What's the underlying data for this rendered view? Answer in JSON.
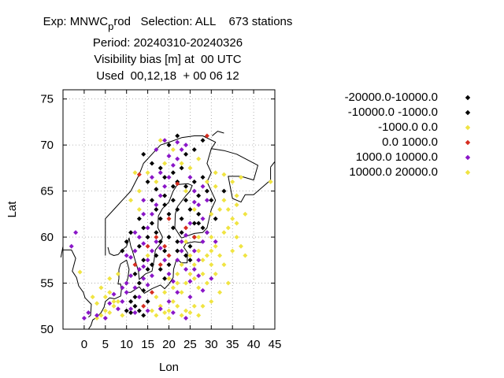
{
  "header": {
    "exp_prefix": "Exp: MNWC",
    "exp_sub": "p",
    "exp_suffix": "rod   Selection: ALL    673 stations",
    "period": "Period: 20240310-20240326",
    "parameter": "Visibility bias [m] at  00 UTC",
    "used": "Used  00,12,18  + 00 06 12"
  },
  "chart_data": {
    "type": "scatter",
    "xlabel": "Lon",
    "ylabel": "Lat",
    "xlim": [
      -5,
      45
    ],
    "ylim": [
      50,
      76
    ],
    "xticks": [
      0,
      5,
      10,
      15,
      20,
      25,
      30,
      35,
      40,
      45
    ],
    "yticks": [
      50,
      55,
      60,
      65,
      70,
      75
    ],
    "grid": true,
    "legend_position": "right",
    "series": [
      {
        "name": "-20000.0-10000.0",
        "color": "#000000",
        "points": []
      },
      {
        "name": "-10000.0 -1000.0",
        "color": "#000000",
        "points": [
          [
            14,
            69
          ],
          [
            16,
            68
          ],
          [
            18,
            67.5
          ],
          [
            19,
            66.5
          ],
          [
            21,
            67
          ],
          [
            22,
            66
          ],
          [
            24,
            65.5
          ],
          [
            26,
            66
          ],
          [
            27,
            64.5
          ],
          [
            29,
            65
          ],
          [
            16,
            64
          ],
          [
            17,
            63
          ],
          [
            18,
            62
          ],
          [
            19,
            63.5
          ],
          [
            20,
            62.5
          ],
          [
            21,
            64
          ],
          [
            22,
            63
          ],
          [
            23,
            62
          ],
          [
            24,
            64
          ],
          [
            25,
            63
          ],
          [
            26,
            61.5
          ],
          [
            27,
            62.5
          ],
          [
            28,
            61
          ],
          [
            13,
            62
          ],
          [
            14,
            61
          ],
          [
            15,
            60
          ],
          [
            16,
            61.5
          ],
          [
            17,
            60.5
          ],
          [
            18,
            59.5
          ],
          [
            19,
            58.5
          ],
          [
            20,
            60
          ],
          [
            21,
            61
          ],
          [
            22,
            59.5
          ],
          [
            23,
            60.5
          ],
          [
            24,
            58
          ],
          [
            25,
            59
          ],
          [
            26,
            60
          ],
          [
            27,
            61.5
          ],
          [
            29,
            60.5
          ],
          [
            13,
            59
          ],
          [
            14,
            57.5
          ],
          [
            15,
            56.5
          ],
          [
            12,
            56
          ],
          [
            11,
            53
          ],
          [
            12,
            52.5
          ],
          [
            13,
            52
          ],
          [
            14,
            51.5
          ],
          [
            10,
            52
          ],
          [
            11,
            51.8
          ],
          [
            12,
            53.5
          ],
          [
            13,
            55
          ],
          [
            14,
            54.2
          ],
          [
            15,
            53
          ],
          [
            16,
            57
          ],
          [
            17,
            58
          ],
          [
            18,
            56.5
          ],
          [
            19,
            55.5
          ],
          [
            20,
            57
          ],
          [
            22,
            58.5
          ],
          [
            25,
            57.5
          ],
          [
            15,
            66
          ],
          [
            17,
            65.2
          ],
          [
            19,
            64.5
          ],
          [
            21,
            65.5
          ],
          [
            23,
            67.5
          ],
          [
            28,
            66.5
          ],
          [
            30,
            64
          ],
          [
            31,
            62
          ],
          [
            33,
            65
          ],
          [
            28,
            70.5
          ],
          [
            26,
            69.5
          ],
          [
            24,
            69
          ],
          [
            20,
            70
          ],
          [
            22,
            71
          ],
          [
            10,
            59.5
          ],
          [
            11,
            60.5
          ],
          [
            9,
            58.5
          ]
        ]
      },
      {
        "name": "-1000.0 0.0",
        "color": "#f0e442",
        "points": [
          [
            4,
            51.5
          ],
          [
            5,
            52
          ],
          [
            6,
            51.8
          ],
          [
            7,
            52.5
          ],
          [
            8,
            53
          ],
          [
            5,
            53.5
          ],
          [
            6,
            54
          ],
          [
            7,
            53
          ],
          [
            3,
            51.2
          ],
          [
            9,
            51.5
          ],
          [
            16,
            52
          ],
          [
            17,
            51.5
          ],
          [
            18,
            52.5
          ],
          [
            19,
            51.8
          ],
          [
            20,
            52
          ],
          [
            21,
            53
          ],
          [
            22,
            52.5
          ],
          [
            23,
            51.5
          ],
          [
            24,
            52
          ],
          [
            25,
            51.8
          ],
          [
            26,
            52.5
          ],
          [
            27,
            51.5
          ],
          [
            17,
            53.5
          ],
          [
            19,
            54
          ],
          [
            21,
            54.5
          ],
          [
            22,
            55
          ],
          [
            23,
            54
          ],
          [
            24,
            55
          ],
          [
            25,
            56
          ],
          [
            26,
            55.5
          ],
          [
            27,
            54.5
          ],
          [
            28,
            56
          ],
          [
            29,
            55
          ],
          [
            23,
            57
          ],
          [
            25,
            58
          ],
          [
            26,
            57
          ],
          [
            27,
            58.5
          ],
          [
            28,
            57.5
          ],
          [
            22,
            56
          ],
          [
            20,
            55.5
          ],
          [
            30,
            60
          ],
          [
            31,
            59
          ],
          [
            32,
            58
          ],
          [
            33,
            60.5
          ],
          [
            34,
            61
          ],
          [
            35,
            62
          ],
          [
            36,
            61.5
          ],
          [
            32,
            63
          ],
          [
            33,
            64
          ],
          [
            34,
            63
          ],
          [
            35,
            66
          ],
          [
            37,
            66.5
          ],
          [
            36,
            64.5
          ],
          [
            30,
            62.5
          ],
          [
            31,
            65.5
          ],
          [
            29,
            66
          ],
          [
            29,
            58
          ],
          [
            30,
            57
          ],
          [
            31,
            56
          ],
          [
            27,
            60
          ],
          [
            24,
            59.5
          ],
          [
            15,
            58
          ],
          [
            13,
            63
          ],
          [
            11,
            64
          ],
          [
            13,
            65
          ],
          [
            15,
            67
          ],
          [
            17,
            66
          ],
          [
            19,
            68
          ],
          [
            21,
            69.5
          ],
          [
            23,
            68
          ],
          [
            25,
            67.5
          ],
          [
            27,
            68.5
          ],
          [
            24,
            65
          ],
          [
            44,
            66
          ],
          [
            38,
            62.5
          ],
          [
            18,
            70.5
          ],
          [
            12,
            67
          ],
          [
            26,
            63
          ]
        ]
      },
      {
        "name": "0.0 1000.0",
        "color": "#d62d20",
        "points": [
          [
            13,
            66.8
          ],
          [
            12,
            57
          ],
          [
            15,
            59
          ],
          [
            17,
            60
          ],
          [
            19,
            59
          ],
          [
            20,
            62
          ],
          [
            22,
            65.8
          ],
          [
            24,
            61
          ],
          [
            26,
            60
          ],
          [
            29,
            71
          ],
          [
            16,
            54
          ],
          [
            14,
            52.5
          ],
          [
            18,
            57
          ],
          [
            20,
            58
          ]
        ]
      },
      {
        "name": "1000.0 10000.0",
        "color": "#8a16c8",
        "points": [
          [
            -2,
            60.5
          ],
          [
            -3,
            59
          ],
          [
            0,
            51.2
          ],
          [
            1,
            51.8
          ],
          [
            3,
            51.5
          ],
          [
            5,
            51.2
          ],
          [
            6,
            52.8
          ],
          [
            7,
            53.8
          ],
          [
            8,
            52.2
          ],
          [
            9,
            53
          ],
          [
            9,
            54.5
          ],
          [
            10,
            55
          ],
          [
            11,
            55.8
          ],
          [
            12,
            54.5
          ],
          [
            13,
            53.5
          ],
          [
            14,
            55.5
          ],
          [
            15,
            54.8
          ],
          [
            16,
            55.8
          ],
          [
            10,
            54
          ],
          [
            11,
            52.2
          ],
          [
            12,
            51.8
          ],
          [
            13,
            56.5
          ],
          [
            14,
            56.8
          ],
          [
            15,
            57.5
          ],
          [
            16,
            58.5
          ],
          [
            17,
            59.5
          ],
          [
            18,
            58.8
          ],
          [
            19,
            57.5
          ],
          [
            20,
            56
          ],
          [
            21,
            55.2
          ],
          [
            22,
            57.5
          ],
          [
            23,
            58.5
          ],
          [
            24,
            56.5
          ],
          [
            25,
            55.2
          ],
          [
            26,
            56.5
          ],
          [
            27,
            55.8
          ],
          [
            28,
            54.2
          ],
          [
            25,
            53.5
          ],
          [
            22,
            54
          ],
          [
            20,
            53
          ],
          [
            18,
            52.2
          ],
          [
            21,
            51.8
          ],
          [
            24,
            51.2
          ],
          [
            11,
            57.8
          ],
          [
            12,
            58.5
          ],
          [
            13,
            60
          ],
          [
            14,
            59.3
          ],
          [
            15,
            61
          ],
          [
            16,
            62.5
          ],
          [
            17,
            63.5
          ],
          [
            18,
            64.5
          ],
          [
            19,
            65.5
          ],
          [
            20,
            66.5
          ],
          [
            21,
            67.8
          ],
          [
            22,
            68.5
          ],
          [
            23,
            69.5
          ],
          [
            24,
            70
          ],
          [
            25,
            66.5
          ],
          [
            26,
            65
          ],
          [
            27,
            63.5
          ],
          [
            28,
            62
          ],
          [
            25,
            61.5
          ],
          [
            24,
            60.2
          ],
          [
            23,
            59.5
          ],
          [
            26,
            58.5
          ],
          [
            27,
            57.5
          ],
          [
            28,
            59.5
          ],
          [
            29,
            60.5
          ],
          [
            14,
            64
          ],
          [
            16,
            66.5
          ],
          [
            18,
            67
          ],
          [
            20,
            68.8
          ],
          [
            17,
            69.5
          ],
          [
            19,
            70.5
          ],
          [
            22,
            70.3
          ],
          [
            26,
            63.8
          ],
          [
            28,
            65.5
          ],
          [
            31,
            59.5
          ],
          [
            30,
            55.5
          ],
          [
            15,
            52
          ],
          [
            10,
            58
          ],
          [
            12,
            60.5
          ],
          [
            14,
            62.5
          ],
          [
            29,
            64
          ]
        ]
      },
      {
        "name": "10000.0 20000.0",
        "color": "#f0e442",
        "points": [
          [
            -1,
            56.2
          ],
          [
            2,
            53.5
          ],
          [
            4,
            54.5
          ],
          [
            6,
            55.5
          ],
          [
            8,
            56
          ],
          [
            3,
            52.8
          ],
          [
            30,
            53
          ],
          [
            32,
            54
          ],
          [
            34,
            55
          ],
          [
            33,
            57
          ],
          [
            35,
            58.5
          ],
          [
            36,
            60
          ],
          [
            37,
            59
          ],
          [
            31,
            67
          ],
          [
            33,
            66.8
          ],
          [
            38,
            58
          ],
          [
            20,
            51.2
          ],
          [
            28,
            52.5
          ],
          [
            30,
            58.5
          ],
          [
            36,
            63.5
          ]
        ]
      }
    ]
  }
}
